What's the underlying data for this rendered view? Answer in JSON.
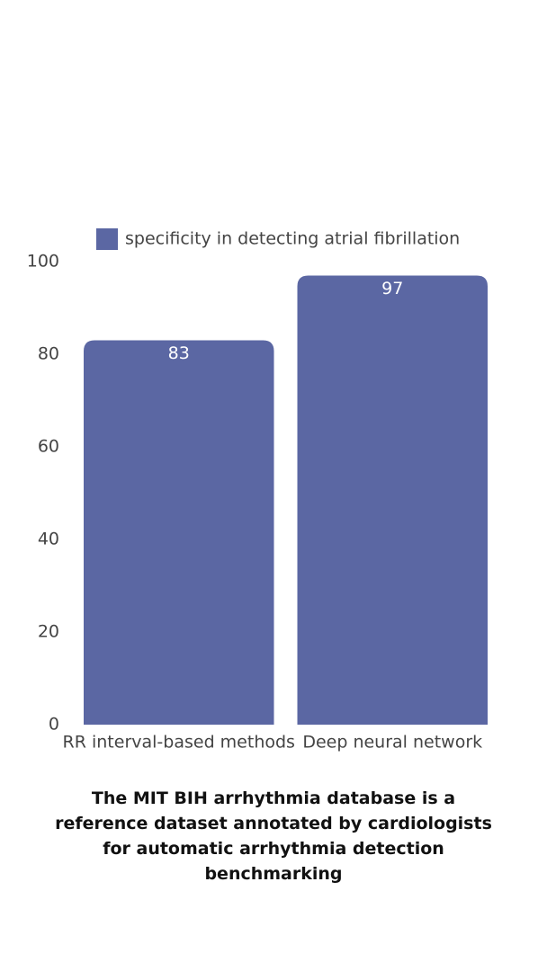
{
  "chart_data": {
    "type": "bar",
    "categories": [
      "RR interval-based methods",
      "Deep neural network"
    ],
    "series": [
      {
        "name": "specificity in detecting atrial fibrillation",
        "color": "#5b67a3",
        "values": [
          83,
          97
        ]
      }
    ],
    "ylim": [
      0,
      100
    ],
    "yticks": [
      0,
      20,
      40,
      60,
      80,
      100
    ],
    "grid": false,
    "legend": "top",
    "caption": "The MIT BIH arrhythmia database is a reference dataset annotated by cardiologists for automatic arrhythmia detection benchmarking"
  }
}
